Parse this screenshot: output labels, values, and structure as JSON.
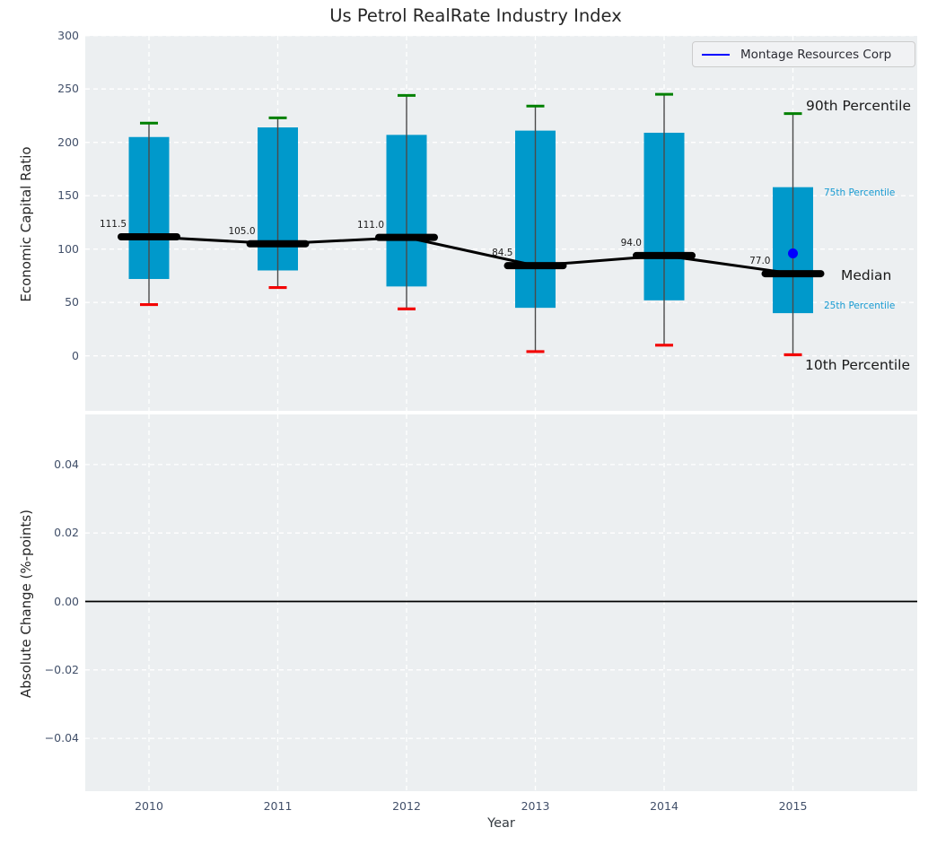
{
  "title": "Us Petrol RealRate Industry Index",
  "legend": {
    "label": "Montage Resources Corp"
  },
  "colors": {
    "accent_blue": "#189bd2",
    "box_fill": "#0099cb",
    "p90_cap_green": "#008000",
    "p10_cap_red": "#f30000",
    "company_blue": "#0000ff",
    "median_black": "#000000",
    "whisker_gray": "#4a4a4a",
    "plot_background": "#eceff1",
    "grid_white": "#ffffff",
    "tick_label": "#42506a",
    "text": "#262626"
  },
  "chart_data": [
    {
      "type": "box",
      "title": "Us Petrol RealRate Industry Index",
      "ylabel": "Economic Capital Ratio",
      "categories": [
        "2010",
        "2011",
        "2012",
        "2013",
        "2014",
        "2015"
      ],
      "yticks": [
        300,
        250,
        200,
        150,
        100,
        50,
        0
      ],
      "ytick_labels": [
        "300",
        "250",
        "200",
        "150",
        "100",
        "50",
        "0"
      ],
      "ylim": [
        -53,
        300
      ],
      "grid": "white-dashed",
      "series": [
        {
          "name": "10th Percentile",
          "values": [
            48,
            64,
            44,
            4,
            10,
            1
          ]
        },
        {
          "name": "25th Percentile",
          "values": [
            72,
            80,
            65,
            45,
            52,
            40
          ]
        },
        {
          "name": "Median",
          "values": [
            111.5,
            105.0,
            111.0,
            84.5,
            94.0,
            77.0
          ]
        },
        {
          "name": "75th Percentile",
          "values": [
            205,
            214,
            207,
            211,
            209,
            158
          ]
        },
        {
          "name": "90th Percentile",
          "values": [
            218,
            223,
            244,
            234,
            245,
            227
          ]
        }
      ],
      "median_labels": [
        "111.5",
        "105.0",
        "111.0",
        "84.5",
        "94.0",
        "77.0"
      ],
      "company_series": {
        "name": "Montage Resources Corp",
        "points": [
          {
            "x": "2015",
            "y": 96
          }
        ]
      },
      "annotations": [
        {
          "label": "90th Percentile",
          "style": "major"
        },
        {
          "label": "75th Percentile",
          "style": "minor"
        },
        {
          "label": "Median",
          "style": "major"
        },
        {
          "label": "25th Percentile",
          "style": "minor"
        },
        {
          "label": "10th Percentile",
          "style": "major"
        }
      ],
      "legend_position": "upper right"
    },
    {
      "type": "bar",
      "ylabel": "Absolute Change (%-points)",
      "xlabel": "Year",
      "categories": [
        "2010",
        "2011",
        "2012",
        "2013",
        "2014",
        "2015"
      ],
      "yticks": [
        0.04,
        0.02,
        0.0,
        -0.02,
        -0.04
      ],
      "ytick_labels": [
        "0.04",
        "0.02",
        "0.00",
        "−0.02",
        "−0.04"
      ],
      "ylim": [
        -0.0555,
        0.0547
      ],
      "values": [],
      "zero_line": true,
      "grid": "white-dashed"
    }
  ]
}
